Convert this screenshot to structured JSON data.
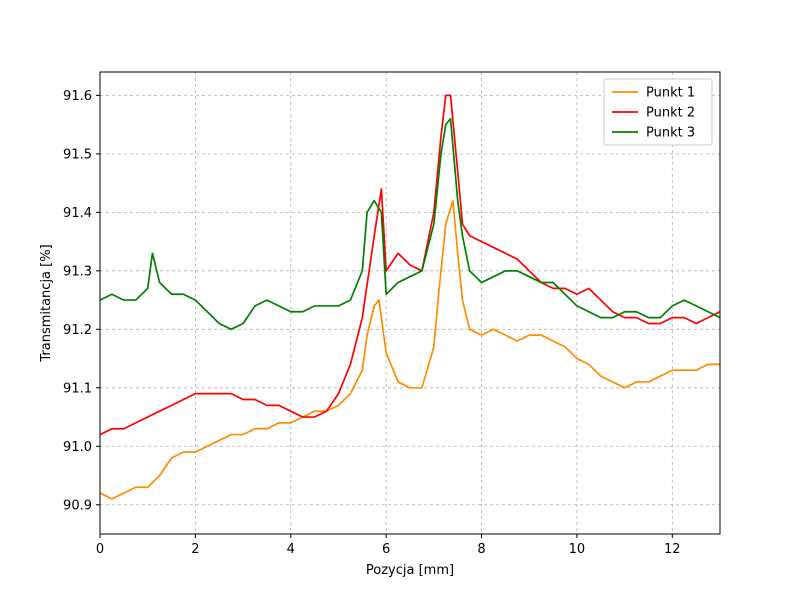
{
  "chart_data": {
    "type": "line",
    "title": "",
    "xlabel": "Pozycja [mm]",
    "ylabel": "Transmitancja [%]",
    "xlim": [
      0,
      13
    ],
    "ylim": [
      90.85,
      91.64
    ],
    "xticks": [
      0,
      2,
      4,
      6,
      8,
      10,
      12
    ],
    "yticks": [
      90.9,
      91.0,
      91.1,
      91.2,
      91.3,
      91.4,
      91.5,
      91.6
    ],
    "xtick_labels": [
      "0",
      "2",
      "4",
      "6",
      "8",
      "10",
      "12"
    ],
    "ytick_labels": [
      "90.9",
      "91.0",
      "91.1",
      "91.2",
      "91.3",
      "91.4",
      "91.5",
      "91.6"
    ],
    "grid": true,
    "legend_position": "top-right",
    "series": [
      {
        "name": "Punkt 1",
        "color": "#ff8c00",
        "x": [
          0.0,
          0.25,
          0.5,
          0.75,
          1.0,
          1.25,
          1.5,
          1.75,
          2.0,
          2.25,
          2.5,
          2.75,
          3.0,
          3.25,
          3.5,
          3.75,
          4.0,
          4.25,
          4.5,
          4.75,
          5.0,
          5.25,
          5.5,
          5.6,
          5.75,
          5.85,
          6.0,
          6.25,
          6.5,
          6.75,
          7.0,
          7.1,
          7.25,
          7.4,
          7.5,
          7.6,
          7.75,
          8.0,
          8.25,
          8.5,
          8.75,
          9.0,
          9.25,
          9.5,
          9.75,
          10.0,
          10.25,
          10.5,
          10.75,
          11.0,
          11.25,
          11.5,
          11.75,
          12.0,
          12.25,
          12.5,
          12.75,
          13.0
        ],
        "y": [
          90.92,
          90.91,
          90.92,
          90.93,
          90.93,
          90.95,
          90.98,
          90.99,
          90.99,
          91.0,
          91.01,
          91.02,
          91.02,
          91.03,
          91.03,
          91.04,
          91.04,
          91.05,
          91.06,
          91.06,
          91.07,
          91.09,
          91.13,
          91.19,
          91.24,
          91.25,
          91.16,
          91.11,
          91.1,
          91.1,
          91.17,
          91.26,
          91.38,
          91.42,
          91.33,
          91.25,
          91.2,
          91.19,
          91.2,
          91.19,
          91.18,
          91.19,
          91.19,
          91.18,
          91.17,
          91.15,
          91.14,
          91.12,
          91.11,
          91.1,
          91.11,
          91.11,
          91.12,
          91.13,
          91.13,
          91.13,
          91.14,
          91.14
        ]
      },
      {
        "name": "Punkt 2",
        "color": "#ff0000",
        "x": [
          0.0,
          0.25,
          0.5,
          0.75,
          1.0,
          1.25,
          1.5,
          1.75,
          2.0,
          2.25,
          2.5,
          2.75,
          3.0,
          3.25,
          3.5,
          3.75,
          4.0,
          4.25,
          4.5,
          4.75,
          5.0,
          5.25,
          5.5,
          5.75,
          5.9,
          6.0,
          6.25,
          6.5,
          6.75,
          7.0,
          7.15,
          7.25,
          7.35,
          7.5,
          7.6,
          7.75,
          8.0,
          8.25,
          8.5,
          8.75,
          9.0,
          9.25,
          9.5,
          9.75,
          10.0,
          10.25,
          10.5,
          10.75,
          11.0,
          11.25,
          11.5,
          11.75,
          12.0,
          12.25,
          12.5,
          12.75,
          13.0
        ],
        "y": [
          91.02,
          91.03,
          91.03,
          91.04,
          91.05,
          91.06,
          91.07,
          91.08,
          91.09,
          91.09,
          91.09,
          91.09,
          91.08,
          91.08,
          91.07,
          91.07,
          91.06,
          91.05,
          91.05,
          91.06,
          91.09,
          91.14,
          91.22,
          91.36,
          91.44,
          91.3,
          91.33,
          91.31,
          91.3,
          91.4,
          91.53,
          91.6,
          91.6,
          91.47,
          91.38,
          91.36,
          91.35,
          91.34,
          91.33,
          91.32,
          91.3,
          91.28,
          91.27,
          91.27,
          91.26,
          91.27,
          91.25,
          91.23,
          91.22,
          91.22,
          91.21,
          91.21,
          91.22,
          91.22,
          91.21,
          91.22,
          91.23
        ]
      },
      {
        "name": "Punkt 3",
        "color": "#008000",
        "x": [
          0.0,
          0.25,
          0.5,
          0.75,
          1.0,
          1.1,
          1.25,
          1.5,
          1.75,
          2.0,
          2.25,
          2.5,
          2.75,
          3.0,
          3.25,
          3.5,
          3.75,
          4.0,
          4.25,
          4.5,
          4.75,
          5.0,
          5.25,
          5.5,
          5.6,
          5.75,
          5.9,
          6.0,
          6.25,
          6.5,
          6.75,
          7.0,
          7.15,
          7.25,
          7.35,
          7.5,
          7.6,
          7.75,
          8.0,
          8.25,
          8.5,
          8.75,
          9.0,
          9.25,
          9.5,
          9.75,
          10.0,
          10.25,
          10.5,
          10.75,
          11.0,
          11.25,
          11.5,
          11.75,
          12.0,
          12.25,
          12.5,
          12.75,
          13.0
        ],
        "y": [
          91.25,
          91.26,
          91.25,
          91.25,
          91.27,
          91.33,
          91.28,
          91.26,
          91.26,
          91.25,
          91.23,
          91.21,
          91.2,
          91.21,
          91.24,
          91.25,
          91.24,
          91.23,
          91.23,
          91.24,
          91.24,
          91.24,
          91.25,
          91.3,
          91.4,
          91.42,
          91.4,
          91.26,
          91.28,
          91.29,
          91.3,
          91.38,
          91.5,
          91.55,
          91.56,
          91.42,
          91.36,
          91.3,
          91.28,
          91.29,
          91.3,
          91.3,
          91.29,
          91.28,
          91.28,
          91.26,
          91.24,
          91.23,
          91.22,
          91.22,
          91.23,
          91.23,
          91.22,
          91.22,
          91.24,
          91.25,
          91.24,
          91.23,
          91.22
        ]
      }
    ]
  }
}
